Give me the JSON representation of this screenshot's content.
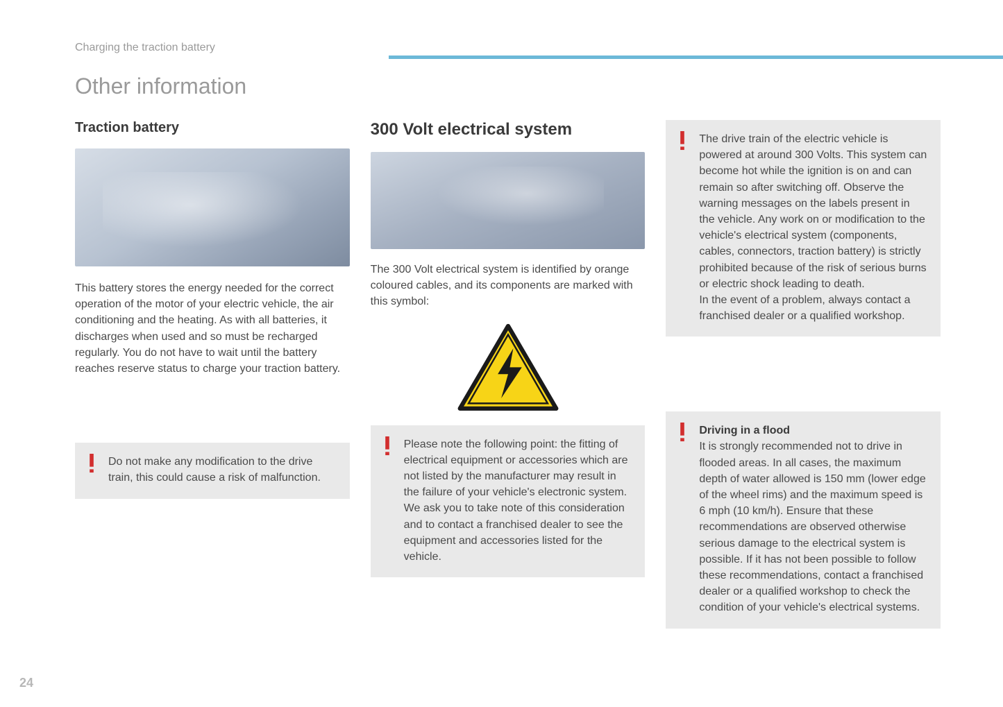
{
  "colors": {
    "rule": "#6cb9d8",
    "breadcrumb": "#9a9a9a",
    "heading_gray": "#9a9a9a",
    "title_dark": "#3a3a3a",
    "body": "#4a4a4a",
    "warning_bg": "#e9e9e9",
    "bang": "#d22e2e",
    "hazard_fill": "#f7d417",
    "hazard_stroke": "#1a1a1a",
    "page_num": "#b7b7b7"
  },
  "fonts": {
    "body_size_pt": 12,
    "title_size_pt": 18,
    "heading_size_pt": 24
  },
  "breadcrumb": "Charging the traction battery",
  "heading": "Other information",
  "page_number": "24",
  "col1": {
    "title": "Traction battery",
    "body": "This battery stores the energy needed for the correct operation of the motor of your electric vehicle, the air conditioning and the heating. As with all batteries, it discharges when used and so must be recharged regularly. You do not have to wait until the battery reaches reserve status to charge your traction battery.",
    "warning": "Do not make any modification to the drive train, this could cause a risk of malfunction."
  },
  "col2": {
    "title": "300 Volt electrical system",
    "body": "The 300 Volt electrical system is identified by orange coloured cables, and its components are marked with this symbol:",
    "warning": "Please note the following point: the fitting of electrical equipment or accessories which are not listed by the manufacturer may result in the failure of your vehicle's electronic system. We ask you to take note of this consideration and to contact a franchised dealer to see the equipment and accessories listed for the vehicle."
  },
  "col3": {
    "warning1": "The drive train of the electric vehicle is powered at around 300 Volts. This system can become hot while the ignition is on and can remain so after switching off. Observe the warning messages on the labels present in the vehicle. Any work on or modification to the vehicle's electrical system (components, cables, connectors, traction battery) is strictly prohibited because of the risk of serious burns or electric shock leading to death.\nIn the event of a problem, always contact a franchised dealer or a qualified workshop.",
    "warning2_title": "Driving in a flood",
    "warning2": "It is strongly recommended not to drive in flooded areas. In all cases, the maximum depth of water allowed is 150 mm (lower edge of the wheel rims) and the maximum speed is 6 mph (10 km/h). Ensure that these recommendations are observed otherwise serious damage to the electrical system is possible. If it has not been possible to follow these recommendations, contact a franchised dealer or a qualified workshop to check the condition of your vehicle's electrical systems."
  }
}
